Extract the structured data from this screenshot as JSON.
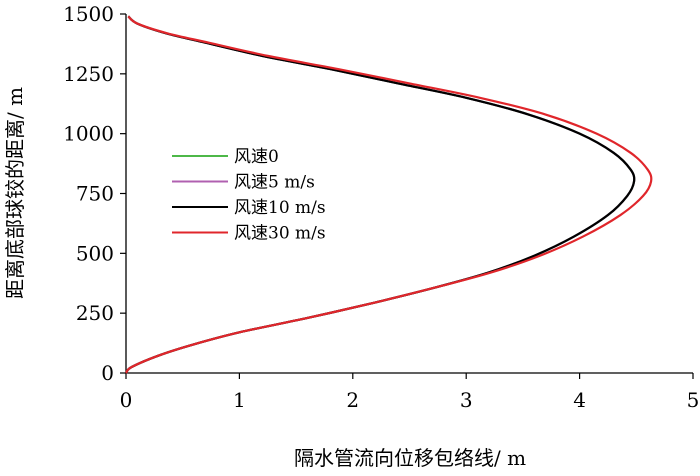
{
  "chart_data": {
    "type": "line",
    "title": "",
    "xlabel": "隔水管流向位移包络线/ m",
    "ylabel": "距离底部球铰的距离/ m",
    "xlim": [
      0,
      5
    ],
    "ylim": [
      0,
      1500
    ],
    "xticks": [
      0,
      1,
      2,
      3,
      4,
      5
    ],
    "yticks": [
      0,
      250,
      500,
      750,
      1000,
      1250,
      1500
    ],
    "grid": false,
    "legend_position": "center-left",
    "series": [
      {
        "name": "风速0",
        "color": "#4db848",
        "points": [
          [
            0,
            0
          ],
          [
            0.05,
            25
          ],
          [
            0.3,
            75
          ],
          [
            0.6,
            120
          ],
          [
            1.0,
            170
          ],
          [
            1.6,
            230
          ],
          [
            2.2,
            295
          ],
          [
            2.75,
            360
          ],
          [
            3.2,
            420
          ],
          [
            3.6,
            490
          ],
          [
            3.95,
            570
          ],
          [
            4.25,
            660
          ],
          [
            4.42,
            740
          ],
          [
            4.48,
            800
          ],
          [
            4.45,
            850
          ],
          [
            4.3,
            920
          ],
          [
            4.0,
            1000
          ],
          [
            3.55,
            1080
          ],
          [
            3.0,
            1150
          ],
          [
            2.4,
            1210
          ],
          [
            1.8,
            1270
          ],
          [
            1.2,
            1325
          ],
          [
            0.7,
            1380
          ],
          [
            0.35,
            1420
          ],
          [
            0.1,
            1460
          ],
          [
            0.02,
            1490
          ]
        ]
      },
      {
        "name": "风速5 m/s",
        "color": "#b060b0",
        "points": [
          [
            0,
            0
          ],
          [
            0.05,
            25
          ],
          [
            0.3,
            75
          ],
          [
            0.6,
            120
          ],
          [
            1.0,
            170
          ],
          [
            1.6,
            230
          ],
          [
            2.2,
            295
          ],
          [
            2.75,
            360
          ],
          [
            3.2,
            420
          ],
          [
            3.6,
            490
          ],
          [
            3.95,
            570
          ],
          [
            4.25,
            660
          ],
          [
            4.42,
            740
          ],
          [
            4.48,
            800
          ],
          [
            4.45,
            850
          ],
          [
            4.3,
            920
          ],
          [
            4.0,
            1000
          ],
          [
            3.55,
            1080
          ],
          [
            3.0,
            1150
          ],
          [
            2.4,
            1210
          ],
          [
            1.8,
            1270
          ],
          [
            1.2,
            1325
          ],
          [
            0.7,
            1380
          ],
          [
            0.35,
            1420
          ],
          [
            0.1,
            1460
          ],
          [
            0.02,
            1490
          ]
        ]
      },
      {
        "name": "风速10 m/s",
        "color": "#000000",
        "points": [
          [
            0,
            0
          ],
          [
            0.05,
            25
          ],
          [
            0.3,
            75
          ],
          [
            0.6,
            120
          ],
          [
            1.0,
            170
          ],
          [
            1.6,
            230
          ],
          [
            2.2,
            295
          ],
          [
            2.75,
            360
          ],
          [
            3.2,
            420
          ],
          [
            3.6,
            490
          ],
          [
            3.95,
            570
          ],
          [
            4.25,
            660
          ],
          [
            4.42,
            740
          ],
          [
            4.48,
            800
          ],
          [
            4.45,
            850
          ],
          [
            4.3,
            920
          ],
          [
            4.0,
            1000
          ],
          [
            3.55,
            1080
          ],
          [
            3.0,
            1150
          ],
          [
            2.4,
            1210
          ],
          [
            1.8,
            1270
          ],
          [
            1.2,
            1325
          ],
          [
            0.7,
            1380
          ],
          [
            0.35,
            1420
          ],
          [
            0.1,
            1460
          ],
          [
            0.02,
            1490
          ]
        ]
      },
      {
        "name": "风速30 m/s",
        "color": "#e0262b",
        "points": [
          [
            0,
            0
          ],
          [
            0.05,
            25
          ],
          [
            0.3,
            75
          ],
          [
            0.6,
            120
          ],
          [
            1.0,
            170
          ],
          [
            1.6,
            230
          ],
          [
            2.2,
            295
          ],
          [
            2.75,
            360
          ],
          [
            3.22,
            420
          ],
          [
            3.65,
            490
          ],
          [
            4.03,
            570
          ],
          [
            4.36,
            660
          ],
          [
            4.56,
            740
          ],
          [
            4.63,
            800
          ],
          [
            4.6,
            850
          ],
          [
            4.45,
            920
          ],
          [
            4.15,
            1000
          ],
          [
            3.7,
            1080
          ],
          [
            3.12,
            1150
          ],
          [
            2.5,
            1210
          ],
          [
            1.87,
            1270
          ],
          [
            1.25,
            1325
          ],
          [
            0.73,
            1380
          ],
          [
            0.36,
            1420
          ],
          [
            0.1,
            1460
          ],
          [
            0.02,
            1490
          ]
        ]
      }
    ]
  }
}
